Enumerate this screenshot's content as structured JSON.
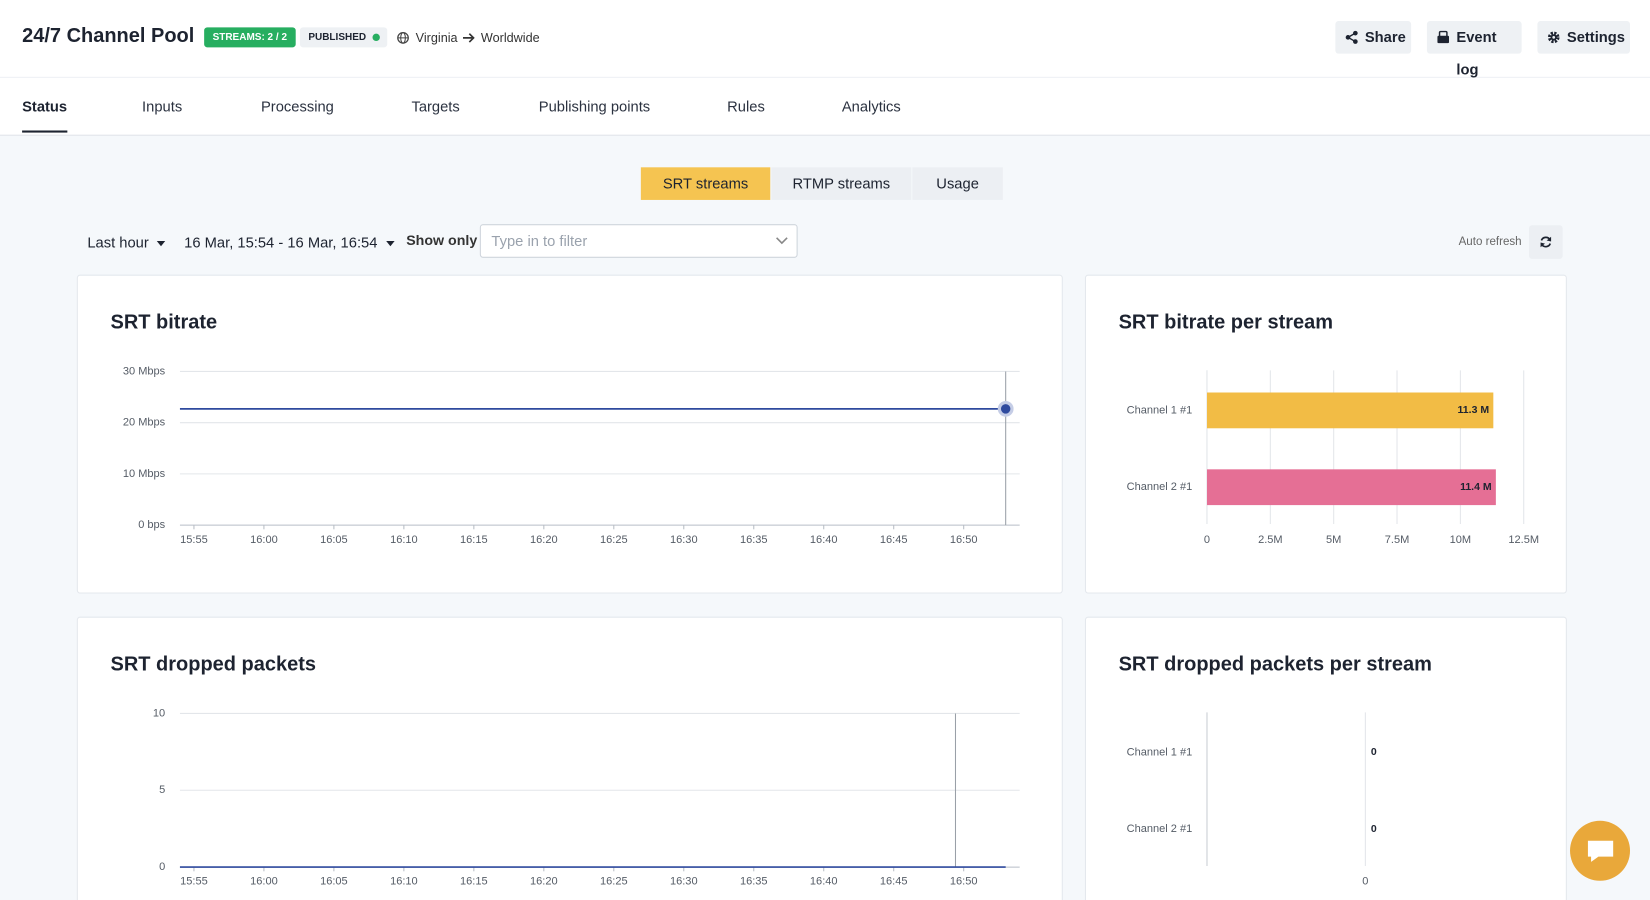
{
  "header": {
    "title": "24/7 Channel Pool",
    "badges": [
      "STREAMS: 2 / 2",
      "PUBLISHED"
    ],
    "route": {
      "from": "Virginia",
      "to": "Worldwide"
    },
    "actions": [
      "Share",
      "Event log",
      "Settings"
    ]
  },
  "tabs": {
    "items": [
      "Status",
      "Inputs",
      "Processing",
      "Targets",
      "Publishing points",
      "Rules",
      "Analytics"
    ],
    "active": 0
  },
  "subtabs": {
    "items": [
      "SRT streams",
      "RTMP streams",
      "Usage"
    ],
    "active": 0
  },
  "filters": {
    "range": "Last hour",
    "period": "16 Mar, 15:54 - 16 Mar, 16:54",
    "show_only": "Show only",
    "placeholder": "Type in to filter",
    "auto_refresh": "Auto refresh"
  },
  "chart_data": [
    {
      "type": "line",
      "title": "SRT bitrate",
      "x": [
        954,
        1013
      ],
      "series": [
        {
          "color": "#2f4a9e",
          "values": [
            22.7,
            22.7
          ]
        }
      ],
      "xlim": [
        954,
        1014
      ],
      "xticks": [
        {
          "value": 955,
          "label": "15:55"
        },
        {
          "value": 960,
          "label": "16:00"
        },
        {
          "value": 965,
          "label": "16:05"
        },
        {
          "value": 970,
          "label": "16:10"
        },
        {
          "value": 975,
          "label": "16:15"
        },
        {
          "value": 980,
          "label": "16:20"
        },
        {
          "value": 985,
          "label": "16:25"
        },
        {
          "value": 990,
          "label": "16:30"
        },
        {
          "value": 995,
          "label": "16:35"
        },
        {
          "value": 1000,
          "label": "16:40"
        },
        {
          "value": 1005,
          "label": "16:45"
        },
        {
          "value": 1010,
          "label": "16:50"
        }
      ],
      "ylim": [
        0,
        30
      ],
      "yticks": [
        {
          "value": 0,
          "label": "0 bps"
        },
        {
          "value": 10,
          "label": "10 Mbps"
        },
        {
          "value": 20,
          "label": "20 Mbps"
        },
        {
          "value": 30,
          "label": "30 Mbps"
        }
      ],
      "grid": true
    },
    {
      "type": "bar",
      "orientation": "horizontal",
      "title": "SRT bitrate per stream",
      "categories": [
        "Channel 1 #1",
        "Channel 2 #1"
      ],
      "values": [
        11300000,
        11400000
      ],
      "value_labels": [
        "11.3 M",
        "11.4 M"
      ],
      "colors": [
        "#f2bc45",
        "#e56f95"
      ],
      "xlim": [
        0,
        12500000
      ],
      "xticks": [
        0,
        {
          "value": 2500000,
          "label": "2.5M"
        },
        {
          "value": 5000000,
          "label": "5M"
        },
        {
          "value": 7500000,
          "label": "7.5M"
        },
        {
          "value": 10000000,
          "label": "10M"
        },
        {
          "value": 12500000,
          "label": "12.5M"
        }
      ],
      "grid": true
    },
    {
      "type": "line",
      "title": "SRT dropped packets",
      "x": [
        954,
        1013
      ],
      "series": [
        {
          "color": "#2f4a9e",
          "values": [
            0,
            0
          ]
        }
      ],
      "xlim": [
        954,
        1014
      ],
      "xticks": [
        {
          "value": 955,
          "label": "15:55"
        },
        {
          "value": 960,
          "label": "16:00"
        },
        {
          "value": 965,
          "label": "16:05"
        },
        {
          "value": 970,
          "label": "16:10"
        },
        {
          "value": 975,
          "label": "16:15"
        },
        {
          "value": 980,
          "label": "16:20"
        },
        {
          "value": 985,
          "label": "16:25"
        },
        {
          "value": 990,
          "label": "16:30"
        },
        {
          "value": 995,
          "label": "16:35"
        },
        {
          "value": 1000,
          "label": "16:40"
        },
        {
          "value": 1005,
          "label": "16:45"
        },
        {
          "value": 1010,
          "label": "16:50"
        }
      ],
      "ylim": [
        0,
        10
      ],
      "yticks": [
        0,
        5,
        10
      ],
      "grid": true
    },
    {
      "type": "bar",
      "orientation": "horizontal",
      "title": "SRT dropped packets per stream",
      "categories": [
        "Channel 1 #1",
        "Channel 2 #1"
      ],
      "values": [
        0,
        0
      ],
      "colors": [
        "#f2bc45",
        "#e56f95"
      ],
      "xlim": [
        -1,
        1
      ],
      "xticks": [
        0
      ],
      "grid": true
    }
  ]
}
